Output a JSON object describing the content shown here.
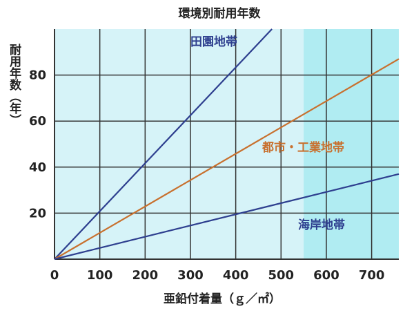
{
  "chart_data": {
    "type": "line",
    "title": "環境別耐用年数",
    "xlabel": "亜鉛付着量（ｇ／㎡）",
    "ylabel": "耐用年数（年）",
    "xlim": [
      0,
      760
    ],
    "ylim": [
      0,
      100
    ],
    "x_ticks": [
      0,
      100,
      200,
      300,
      400,
      500,
      600,
      700
    ],
    "y_ticks": [
      20,
      40,
      60,
      80
    ],
    "grid": true,
    "shaded_region_x_from": 550,
    "series": [
      {
        "name": "田園地帯",
        "x": [
          0,
          480
        ],
        "y": [
          0,
          100
        ],
        "color": "#2e3f8f"
      },
      {
        "name": "都市・工業地帯",
        "x": [
          0,
          760
        ],
        "y": [
          0,
          87
        ],
        "color": "#c8702e"
      },
      {
        "name": "海岸地帯",
        "x": [
          0,
          760
        ],
        "y": [
          0,
          37
        ],
        "color": "#2e3f8f"
      }
    ],
    "colors": {
      "plot_background": "#d6f3f8",
      "shaded_background": "#b0ecf2",
      "grid": "#333333"
    }
  }
}
